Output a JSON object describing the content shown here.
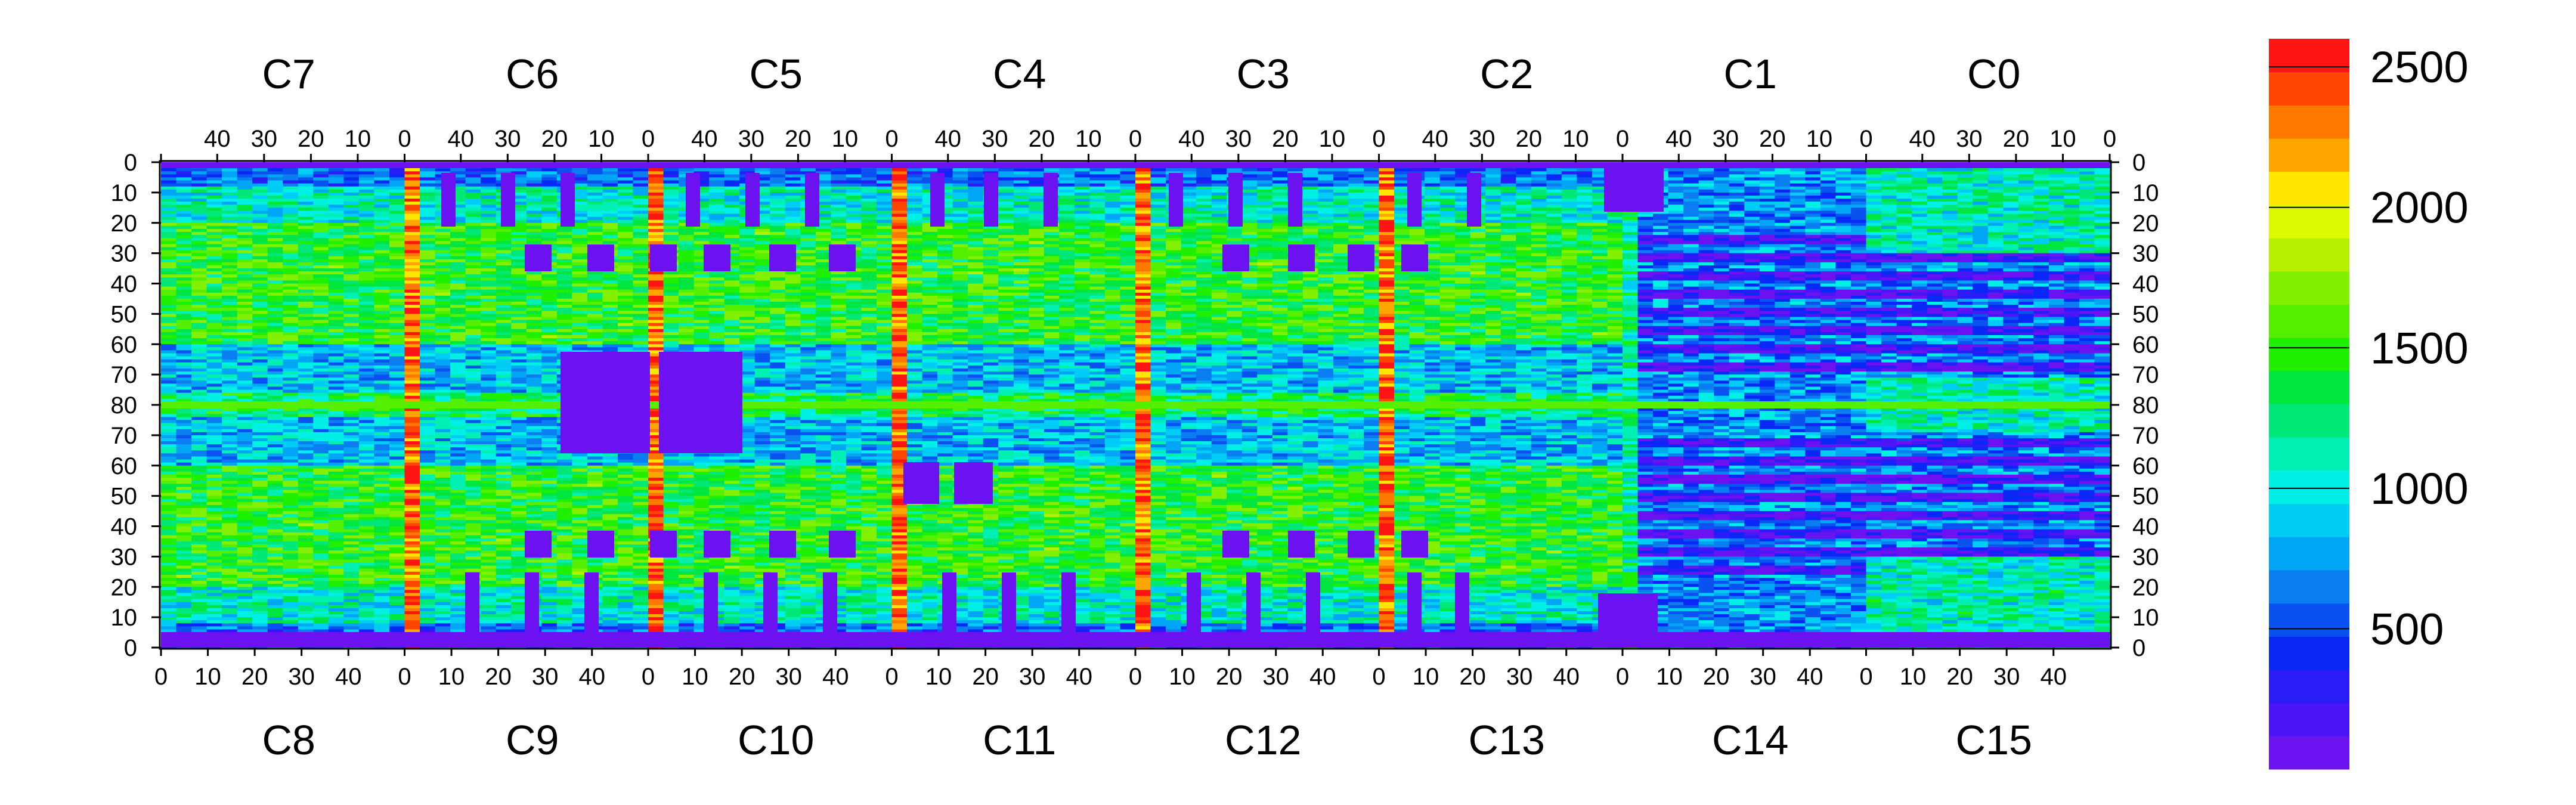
{
  "chart_data": {
    "type": "heatmap",
    "title": "",
    "xlabel": "",
    "ylabel": "",
    "top_chips": [
      "C7",
      "C6",
      "C5",
      "C4",
      "C3",
      "C2",
      "C1",
      "C0"
    ],
    "bottom_chips": [
      "C8",
      "C9",
      "C10",
      "C11",
      "C12",
      "C13",
      "C14",
      "C15"
    ],
    "top_x_ticks": [
      "40",
      "30",
      "20",
      "10",
      "0"
    ],
    "bottom_x_ticks": [
      "0",
      "10",
      "20",
      "30",
      "40"
    ],
    "y_ticks": [
      "0",
      "10",
      "20",
      "30",
      "40",
      "50",
      "60",
      "70",
      "80",
      "70",
      "60",
      "50",
      "40",
      "30",
      "20",
      "10",
      "0"
    ],
    "chip_columns": 52,
    "rows_per_half": 80,
    "color_scale": {
      "min": 0,
      "max": 2600,
      "ticks": [
        "500",
        "1000",
        "1500",
        "2000",
        "2500"
      ],
      "colors": [
        "#6c12f0",
        "#4a16f5",
        "#2a1cf7",
        "#0a28f5",
        "#0a52f0",
        "#0a7df0",
        "#00a5f5",
        "#00cdf5",
        "#00f0e6",
        "#00f0b4",
        "#00e878",
        "#00e640",
        "#1ef000",
        "#55f000",
        "#82f000",
        "#b4f000",
        "#dcfa00",
        "#ffe600",
        "#ffa500",
        "#ff7800",
        "#ff4600",
        "#ff1414"
      ]
    },
    "value_range": [
      0,
      2600
    ],
    "grid": false,
    "legend": "right colorbar"
  }
}
